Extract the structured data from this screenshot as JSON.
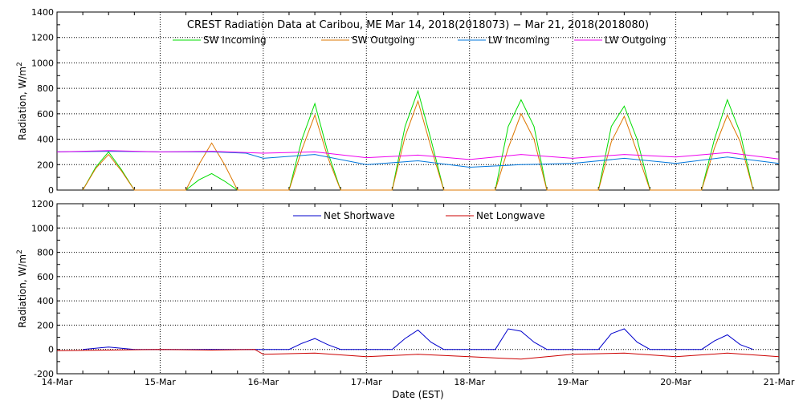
{
  "chart_data": [
    {
      "type": "line",
      "title": "CREST Radiation Data at Caribou, ME   Mar 14, 2018(2018073) − Mar 21, 2018(2018080)",
      "xlabel": "",
      "ylabel": "Radiation, W/m^2",
      "xlim": [
        "2018-03-14 00:00",
        "2018-03-21 00:00"
      ],
      "ylim": [
        0,
        1400
      ],
      "yticks": [
        0,
        200,
        400,
        600,
        800,
        1000,
        1200,
        1400
      ],
      "grid": true,
      "legend_position": "top",
      "series": [
        {
          "name": "SW Incoming",
          "color": "#00dd00",
          "x": [
            "2018-03-14 06:00",
            "2018-03-14 09:00",
            "2018-03-14 12:00",
            "2018-03-14 15:00",
            "2018-03-14 18:00",
            "2018-03-15 06:00",
            "2018-03-15 09:00",
            "2018-03-15 12:00",
            "2018-03-15 15:00",
            "2018-03-15 18:00",
            "2018-03-16 06:00",
            "2018-03-16 09:00",
            "2018-03-16 12:00",
            "2018-03-16 15:00",
            "2018-03-16 18:00",
            "2018-03-17 06:00",
            "2018-03-17 09:00",
            "2018-03-17 12:00",
            "2018-03-17 15:00",
            "2018-03-17 18:00",
            "2018-03-18 06:00",
            "2018-03-18 09:00",
            "2018-03-18 12:00",
            "2018-03-18 15:00",
            "2018-03-18 18:00",
            "2018-03-19 06:00",
            "2018-03-19 09:00",
            "2018-03-19 12:00",
            "2018-03-19 15:00",
            "2018-03-19 18:00",
            "2018-03-20 06:00",
            "2018-03-20 09:00",
            "2018-03-20 12:00",
            "2018-03-20 15:00",
            "2018-03-20 18:00"
          ],
          "values": [
            0,
            180,
            300,
            160,
            0,
            0,
            80,
            130,
            70,
            0,
            0,
            400,
            680,
            300,
            0,
            0,
            500,
            780,
            400,
            0,
            0,
            500,
            710,
            500,
            0,
            0,
            500,
            660,
            400,
            0,
            0,
            400,
            710,
            450,
            0
          ]
        },
        {
          "name": "SW Outgoing",
          "color": "#dd7700",
          "x": [
            "2018-03-14 06:00",
            "2018-03-14 09:00",
            "2018-03-14 12:00",
            "2018-03-14 15:00",
            "2018-03-14 18:00",
            "2018-03-15 06:00",
            "2018-03-15 09:00",
            "2018-03-15 12:00",
            "2018-03-15 15:00",
            "2018-03-15 18:00",
            "2018-03-16 06:00",
            "2018-03-16 09:00",
            "2018-03-16 12:00",
            "2018-03-16 15:00",
            "2018-03-16 18:00",
            "2018-03-17 06:00",
            "2018-03-17 09:00",
            "2018-03-17 12:00",
            "2018-03-17 15:00",
            "2018-03-17 18:00",
            "2018-03-18 06:00",
            "2018-03-18 09:00",
            "2018-03-18 12:00",
            "2018-03-18 15:00",
            "2018-03-18 18:00",
            "2018-03-19 06:00",
            "2018-03-19 09:00",
            "2018-03-19 12:00",
            "2018-03-19 15:00",
            "2018-03-19 18:00",
            "2018-03-20 06:00",
            "2018-03-20 09:00",
            "2018-03-20 12:00",
            "2018-03-20 15:00",
            "2018-03-20 18:00"
          ],
          "values": [
            0,
            170,
            280,
            150,
            0,
            0,
            200,
            370,
            200,
            0,
            0,
            320,
            590,
            260,
            0,
            0,
            420,
            700,
            340,
            0,
            0,
            330,
            600,
            400,
            0,
            0,
            380,
            580,
            300,
            0,
            0,
            330,
            590,
            380,
            0
          ]
        },
        {
          "name": "LW Incoming",
          "color": "#0077dd",
          "x": [
            "2018-03-14 00:00",
            "2018-03-14 12:00",
            "2018-03-15 00:00",
            "2018-03-15 12:00",
            "2018-03-15 20:00",
            "2018-03-16 00:00",
            "2018-03-16 12:00",
            "2018-03-17 00:00",
            "2018-03-17 12:00",
            "2018-03-18 00:00",
            "2018-03-18 12:00",
            "2018-03-19 00:00",
            "2018-03-19 12:00",
            "2018-03-20 00:00",
            "2018-03-20 12:00",
            "2018-03-21 00:00"
          ],
          "values": [
            300,
            305,
            300,
            300,
            290,
            250,
            280,
            200,
            230,
            180,
            200,
            210,
            250,
            210,
            260,
            210
          ]
        },
        {
          "name": "LW Outgoing",
          "color": "#ee00ee",
          "x": [
            "2018-03-14 00:00",
            "2018-03-14 12:00",
            "2018-03-15 00:00",
            "2018-03-15 12:00",
            "2018-03-16 00:00",
            "2018-03-16 12:00",
            "2018-03-17 00:00",
            "2018-03-17 12:00",
            "2018-03-18 00:00",
            "2018-03-18 12:00",
            "2018-03-19 00:00",
            "2018-03-19 12:00",
            "2018-03-20 00:00",
            "2018-03-20 12:00",
            "2018-03-21 00:00"
          ],
          "values": [
            300,
            310,
            300,
            305,
            290,
            300,
            255,
            275,
            240,
            280,
            250,
            280,
            260,
            295,
            245
          ]
        }
      ]
    },
    {
      "type": "line",
      "title": "",
      "xlabel": "Date (EST)",
      "ylabel": "Radiation, W/m^2",
      "xlim": [
        "2018-03-14 00:00",
        "2018-03-21 00:00"
      ],
      "ylim": [
        -200,
        1200
      ],
      "yticks": [
        -200,
        0,
        200,
        400,
        600,
        800,
        1000,
        1200
      ],
      "xtick_labels": [
        "14-Mar",
        "15-Mar",
        "16-Mar",
        "17-Mar",
        "18-Mar",
        "19-Mar",
        "20-Mar",
        "21-Mar"
      ],
      "grid": true,
      "legend_position": "top",
      "series": [
        {
          "name": "Net Shortwave",
          "color": "#0000cc",
          "x": [
            "2018-03-14 06:00",
            "2018-03-14 12:00",
            "2018-03-14 18:00",
            "2018-03-15 12:00",
            "2018-03-16 06:00",
            "2018-03-16 09:00",
            "2018-03-16 12:00",
            "2018-03-16 15:00",
            "2018-03-16 18:00",
            "2018-03-17 06:00",
            "2018-03-17 09:00",
            "2018-03-17 12:00",
            "2018-03-17 15:00",
            "2018-03-17 18:00",
            "2018-03-18 06:00",
            "2018-03-18 09:00",
            "2018-03-18 12:00",
            "2018-03-18 15:00",
            "2018-03-18 18:00",
            "2018-03-19 06:00",
            "2018-03-19 09:00",
            "2018-03-19 12:00",
            "2018-03-19 15:00",
            "2018-03-19 18:00",
            "2018-03-20 06:00",
            "2018-03-20 09:00",
            "2018-03-20 12:00",
            "2018-03-20 15:00",
            "2018-03-20 18:00"
          ],
          "values": [
            0,
            20,
            0,
            0,
            0,
            50,
            90,
            40,
            0,
            0,
            90,
            160,
            60,
            0,
            0,
            170,
            150,
            60,
            0,
            0,
            130,
            170,
            60,
            0,
            0,
            70,
            120,
            40,
            0
          ]
        },
        {
          "name": "Net Longwave",
          "color": "#cc0000",
          "x": [
            "2018-03-14 00:00",
            "2018-03-14 12:00",
            "2018-03-15 00:00",
            "2018-03-15 12:00",
            "2018-03-15 22:00",
            "2018-03-16 00:00",
            "2018-03-16 12:00",
            "2018-03-17 00:00",
            "2018-03-17 12:00",
            "2018-03-18 00:00",
            "2018-03-18 12:00",
            "2018-03-19 00:00",
            "2018-03-19 12:00",
            "2018-03-20 00:00",
            "2018-03-20 12:00",
            "2018-03-21 00:00"
          ],
          "values": [
            -10,
            -5,
            0,
            -5,
            0,
            -40,
            -30,
            -60,
            -40,
            -60,
            -80,
            -40,
            -30,
            -60,
            -30,
            -60
          ]
        }
      ]
    }
  ]
}
